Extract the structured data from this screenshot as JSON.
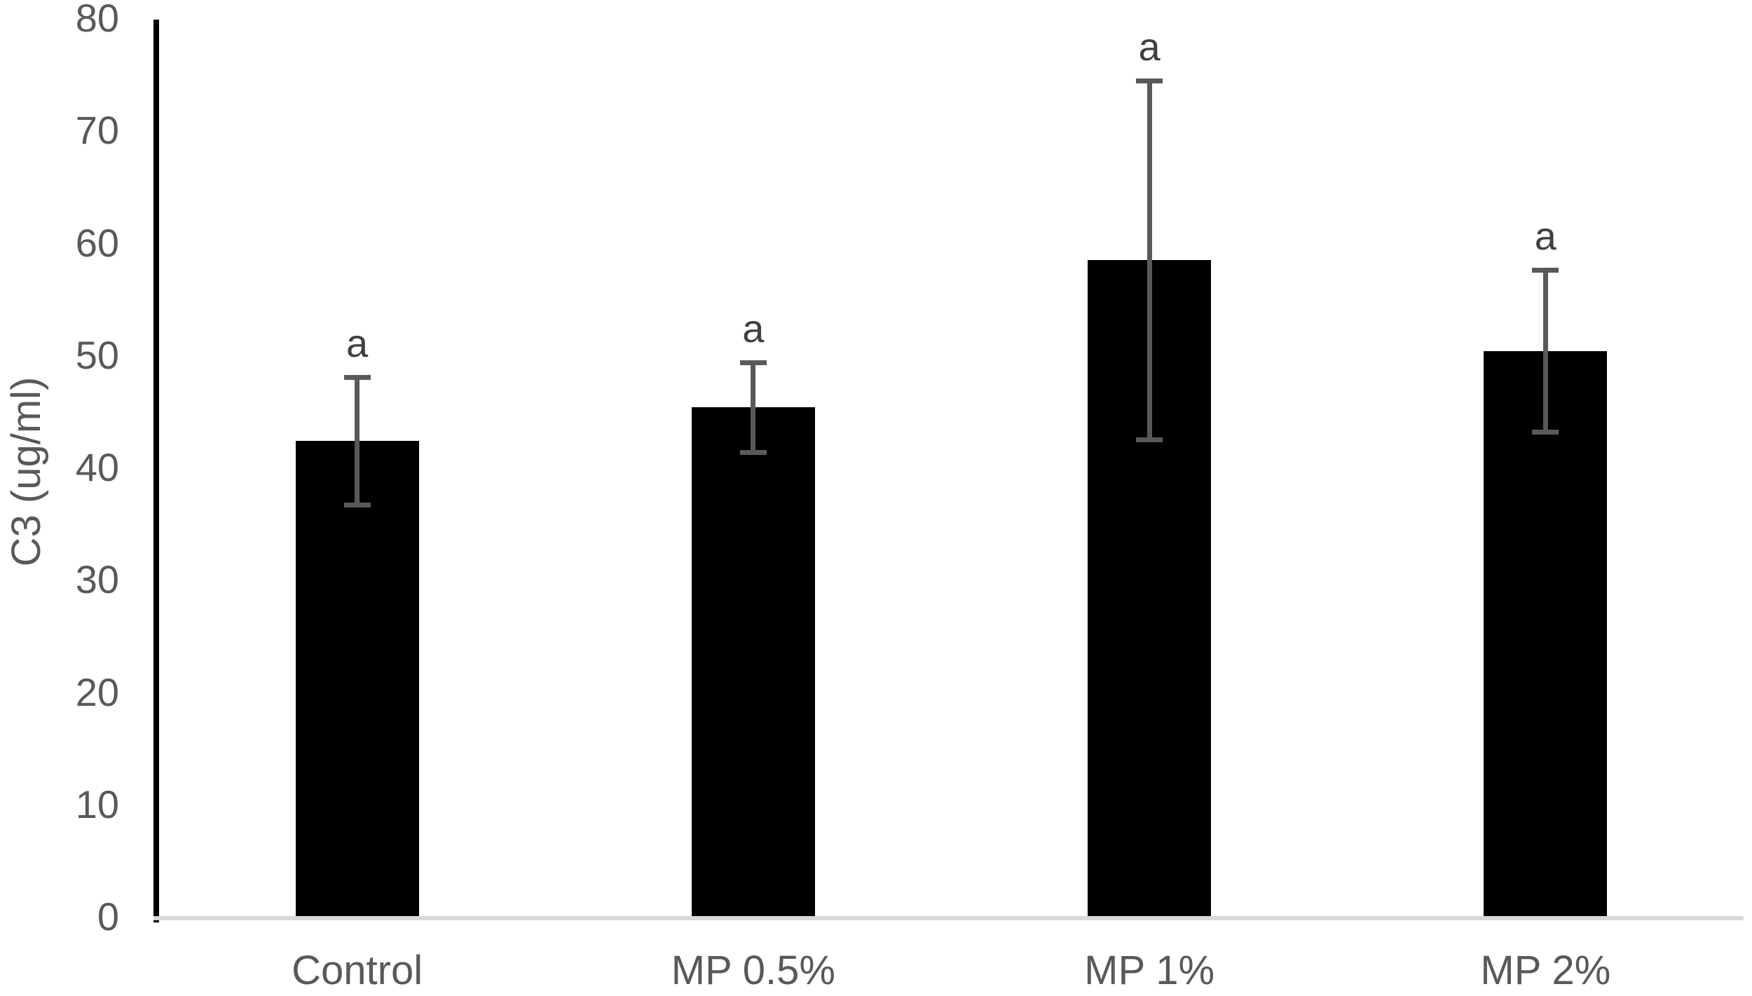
{
  "chart_data": {
    "type": "bar",
    "title": "",
    "ylabel": "C3 (ug/ml)",
    "xlabel": "",
    "categories": [
      "Control",
      "MP 0.5%",
      "MP 1%",
      "MP 2%"
    ],
    "values": [
      42.5,
      45.5,
      58.6,
      50.5
    ],
    "error_bars": [
      5.7,
      4.0,
      16.0,
      7.2
    ],
    "bar_labels": [
      "a",
      "a",
      "a",
      "a"
    ],
    "ylim": [
      0,
      80
    ],
    "yticks": [
      0,
      10,
      20,
      30,
      40,
      50,
      60,
      70,
      80
    ],
    "ytick_step": 10,
    "grid": false,
    "legend": "none",
    "colors": {
      "bar": "#000000",
      "error_bar": "#595959",
      "axis_line": "#000000",
      "baseline": "#d9d9d9",
      "tick_label": "#595959",
      "category_label": "#595959",
      "axis_title": "#595959",
      "significance_label": "#404040",
      "background": "#ffffff"
    }
  }
}
